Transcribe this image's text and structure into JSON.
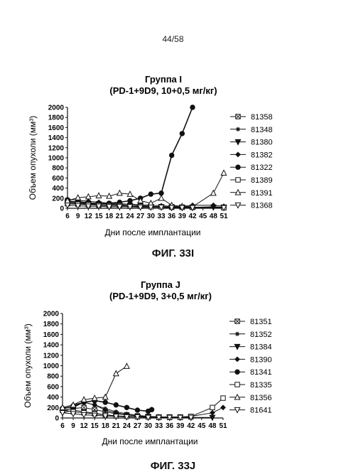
{
  "page_number": "44/58",
  "figures": [
    {
      "caption": "ФИГ. 33I"
    },
    {
      "caption": "ФИГ. 33J"
    }
  ],
  "chart_data": [
    {
      "type": "line",
      "title": "Группа I",
      "subtitle": "(PD-1+9D9, 10+0,5 мг/кг)",
      "xlabel": "Дни после имплантации",
      "ylabel": "Объем опухоли (мм³)",
      "ylim": [
        0,
        2000
      ],
      "yticks": [
        0,
        200,
        400,
        600,
        800,
        1000,
        1200,
        1400,
        1600,
        1800,
        2000
      ],
      "x": [
        6,
        9,
        12,
        15,
        18,
        21,
        24,
        27,
        30,
        33,
        36,
        39,
        42,
        45,
        48,
        51
      ],
      "legend_position": "right",
      "series": [
        {
          "name": "81358",
          "marker": "square-x",
          "x": [
            6,
            9,
            12,
            15,
            18,
            21,
            24,
            27,
            30,
            33,
            36,
            39,
            42,
            51
          ],
          "values": [
            150,
            120,
            100,
            90,
            80,
            70,
            60,
            50,
            40,
            30,
            20,
            20,
            20,
            20
          ]
        },
        {
          "name": "81348",
          "marker": "star",
          "x": [
            6,
            9,
            12,
            15,
            18,
            21,
            24,
            27,
            30,
            33,
            36,
            39,
            42,
            48,
            51
          ],
          "values": [
            120,
            140,
            110,
            100,
            90,
            70,
            60,
            50,
            40,
            30,
            30,
            20,
            20,
            30,
            20
          ]
        },
        {
          "name": "81380",
          "marker": "triangle-down",
          "x": [
            6,
            9,
            12,
            15,
            18,
            21,
            24,
            27,
            30,
            33,
            36,
            39,
            42,
            48,
            51
          ],
          "values": [
            100,
            90,
            80,
            70,
            60,
            50,
            40,
            30,
            30,
            20,
            20,
            20,
            20,
            20,
            20
          ]
        },
        {
          "name": "81382",
          "marker": "diamond",
          "x": [
            6,
            9,
            12,
            15,
            18,
            21,
            24,
            27,
            30,
            33,
            36,
            39,
            42,
            48,
            51
          ],
          "values": [
            180,
            160,
            140,
            120,
            100,
            90,
            80,
            70,
            60,
            50,
            40,
            40,
            60,
            60,
            40
          ]
        },
        {
          "name": "81322",
          "marker": "circle-filled",
          "x": [
            6,
            9,
            12,
            15,
            18,
            21,
            24,
            27,
            30,
            33,
            36,
            39,
            42
          ],
          "values": [
            130,
            110,
            100,
            90,
            100,
            120,
            150,
            200,
            280,
            300,
            1050,
            1480,
            2000
          ]
        },
        {
          "name": "81389",
          "marker": "square",
          "x": [
            6,
            9,
            12,
            15,
            18,
            21,
            24,
            27,
            30,
            33,
            36,
            39,
            42,
            51
          ],
          "values": [
            90,
            80,
            70,
            60,
            50,
            50,
            40,
            40,
            30,
            30,
            30,
            20,
            20,
            10
          ]
        },
        {
          "name": "81391",
          "marker": "triangle-up",
          "x": [
            6,
            9,
            12,
            15,
            18,
            21,
            24,
            27,
            30,
            33,
            36,
            39,
            42,
            48,
            51
          ],
          "values": [
            150,
            210,
            230,
            250,
            240,
            300,
            280,
            150,
            100,
            200,
            60,
            40,
            30,
            300,
            700
          ]
        },
        {
          "name": "81368",
          "marker": "triangle-down-open",
          "x": [
            6,
            9,
            12,
            15,
            18,
            21,
            24,
            27,
            30,
            33,
            36,
            39,
            42,
            51
          ],
          "values": [
            60,
            50,
            40,
            40,
            30,
            30,
            30,
            20,
            20,
            20,
            10,
            10,
            10,
            10
          ]
        }
      ]
    },
    {
      "type": "line",
      "title": "Группа J",
      "subtitle": "(PD-1+9D9, 3+0,5 мг/кг)",
      "xlabel": "Дни после имплантации",
      "ylabel": "Объем опухоли (мм³)",
      "ylim": [
        0,
        2000
      ],
      "yticks": [
        0,
        200,
        400,
        600,
        800,
        1000,
        1200,
        1400,
        1600,
        1800,
        2000
      ],
      "x": [
        6,
        9,
        12,
        15,
        18,
        21,
        24,
        27,
        30,
        33,
        36,
        39,
        42,
        45,
        48,
        51
      ],
      "legend_position": "right",
      "series": [
        {
          "name": "81351",
          "marker": "square-x",
          "x": [
            6,
            9,
            12,
            15,
            18,
            21,
            24,
            27,
            30,
            33,
            36,
            39,
            42
          ],
          "values": [
            150,
            180,
            200,
            160,
            120,
            80,
            60,
            40,
            30,
            20,
            20,
            20,
            20
          ]
        },
        {
          "name": "81352",
          "marker": "star",
          "x": [
            6,
            9,
            12,
            15,
            18,
            21,
            24,
            27,
            30,
            33,
            36,
            39,
            42
          ],
          "values": [
            120,
            200,
            300,
            250,
            180,
            120,
            80,
            50,
            30,
            20,
            20,
            20,
            20
          ]
        },
        {
          "name": "81384",
          "marker": "triangle-down",
          "x": [
            6,
            9,
            12,
            15,
            18,
            21,
            24,
            27,
            30,
            33,
            36,
            39,
            42,
            48
          ],
          "values": [
            100,
            150,
            120,
            90,
            60,
            40,
            30,
            20,
            20,
            10,
            10,
            10,
            10,
            10
          ]
        },
        {
          "name": "81390",
          "marker": "diamond",
          "x": [
            6,
            9,
            12,
            15,
            18,
            21,
            24,
            27,
            30,
            33,
            36,
            39,
            42,
            48,
            51
          ],
          "values": [
            200,
            250,
            300,
            250,
            150,
            100,
            60,
            40,
            30,
            20,
            20,
            20,
            30,
            100,
            200
          ]
        },
        {
          "name": "81341",
          "marker": "circle-filled",
          "x": [
            6,
            9,
            12,
            15,
            18,
            21,
            24,
            27,
            30,
            31
          ],
          "values": [
            180,
            220,
            300,
            330,
            300,
            250,
            200,
            150,
            130,
            160
          ]
        },
        {
          "name": "81335",
          "marker": "square",
          "x": [
            6,
            9,
            12,
            15,
            18,
            21,
            24,
            27,
            30,
            33,
            36,
            39,
            42,
            48,
            51
          ],
          "values": [
            150,
            120,
            100,
            80,
            60,
            40,
            30,
            20,
            20,
            10,
            10,
            10,
            30,
            200,
            380
          ]
        },
        {
          "name": "81356",
          "marker": "triangle-up",
          "x": [
            6,
            9,
            12,
            15,
            18,
            21,
            24
          ],
          "values": [
            200,
            250,
            350,
            380,
            400,
            850,
            990
          ]
        },
        {
          "name": "81641",
          "marker": "triangle-down-open",
          "x": [
            6,
            9,
            12,
            15,
            18,
            21,
            24,
            27,
            30,
            33,
            36,
            39,
            42
          ],
          "values": [
            100,
            80,
            60,
            50,
            40,
            30,
            20,
            20,
            10,
            10,
            10,
            10,
            10
          ]
        }
      ]
    }
  ]
}
